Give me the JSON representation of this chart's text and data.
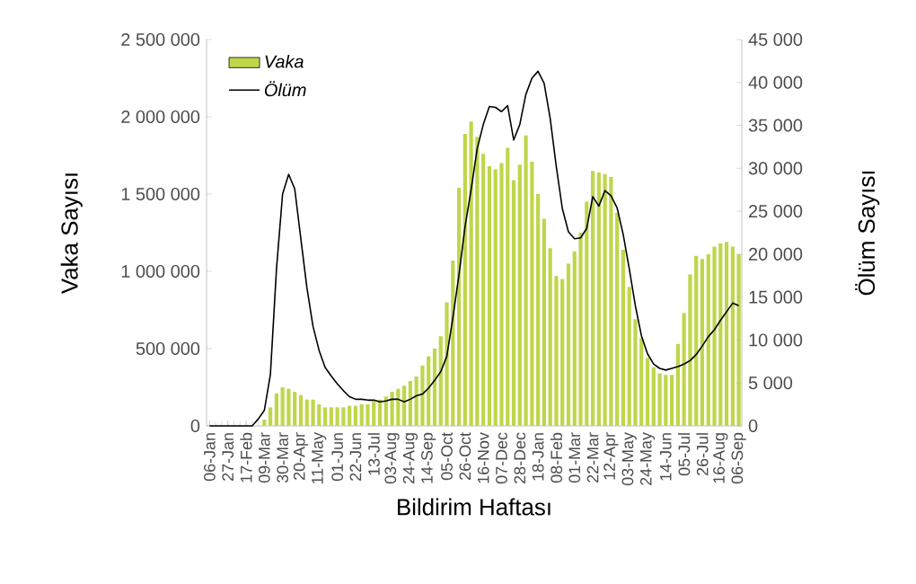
{
  "chart_data": {
    "type": "bar",
    "xlabel": "Bildirim Haftası",
    "ylabel": "Vaka Sayısı",
    "y2label": "Ölüm Sayısı",
    "legend": "top left",
    "categories": [
      "06-Jan",
      null,
      null,
      "27-Jan",
      null,
      null,
      "17-Feb",
      null,
      null,
      "09-Mar",
      null,
      null,
      "30-Mar",
      null,
      null,
      "20-Apr",
      null,
      null,
      "11-May",
      null,
      null,
      "01-Jun",
      null,
      null,
      "22-Jun",
      null,
      null,
      "13-Jul",
      null,
      null,
      "03-Aug",
      null,
      null,
      "24-Aug",
      null,
      null,
      "14-Sep",
      null,
      null,
      "05-Oct",
      null,
      null,
      "26-Oct",
      null,
      null,
      "16-Nov",
      null,
      null,
      "07-Dec",
      null,
      null,
      "28-Dec",
      null,
      null,
      "18-Jan",
      null,
      null,
      "08-Feb",
      null,
      null,
      "01-Mar",
      null,
      null,
      "22-Mar",
      null,
      null,
      "12-Apr",
      null,
      null,
      "03-May",
      null,
      null,
      "24-May",
      null,
      null,
      "14-Jun",
      null,
      null,
      "05-Jul",
      null,
      null,
      "26-Jul",
      null,
      null,
      "16-Aug",
      null,
      null,
      "06-Sep"
    ],
    "series": [
      {
        "name": "Vaka",
        "color": "#bfd64b",
        "values": [
          0,
          0,
          0,
          0,
          0,
          0,
          0,
          0,
          0,
          40000,
          120000,
          210000,
          250000,
          240000,
          220000,
          200000,
          170000,
          170000,
          140000,
          120000,
          120000,
          120000,
          120000,
          130000,
          130000,
          140000,
          140000,
          160000,
          170000,
          190000,
          220000,
          240000,
          260000,
          290000,
          320000,
          390000,
          450000,
          500000,
          580000,
          800000,
          1070000,
          1540000,
          1890000,
          1970000,
          1870000,
          1760000,
          1680000,
          1660000,
          1700000,
          1800000,
          1590000,
          1690000,
          1880000,
          1710000,
          1500000,
          1340000,
          1150000,
          970000,
          950000,
          1050000,
          1130000,
          1250000,
          1450000,
          1650000,
          1640000,
          1630000,
          1610000,
          1380000,
          1140000,
          900000,
          690000,
          570000,
          440000,
          380000,
          340000,
          330000,
          330000,
          530000,
          730000,
          980000,
          1100000,
          1080000,
          1110000,
          1160000,
          1180000,
          1190000,
          1160000,
          1110000
        ]
      },
      {
        "name": "Ölüm",
        "type": "line",
        "axis": "y2",
        "color": "#000000",
        "values": [
          0,
          0,
          0,
          0,
          0,
          0,
          0,
          0,
          800,
          1800,
          6000,
          18300,
          27000,
          29300,
          27600,
          21800,
          16100,
          11600,
          8800,
          6800,
          5800,
          4900,
          4100,
          3400,
          3100,
          3100,
          3000,
          3000,
          2800,
          2900,
          3100,
          3100,
          2800,
          3100,
          3500,
          3700,
          4400,
          5300,
          6300,
          8100,
          12600,
          17600,
          23200,
          27500,
          32300,
          35100,
          37200,
          37100,
          36600,
          37300,
          33300,
          35100,
          38600,
          40500,
          41300,
          39900,
          35800,
          30200,
          25300,
          22600,
          21800,
          21900,
          23000,
          26700,
          25600,
          27400,
          26800,
          25400,
          22300,
          18300,
          14000,
          10500,
          8400,
          7200,
          6700,
          6500,
          6700,
          6900,
          7200,
          7600,
          8300,
          9300,
          10400,
          11200,
          12300,
          13300,
          14300,
          14000
        ]
      }
    ],
    "ylim": [
      0,
      2500000
    ],
    "yticks": [
      {
        "value": 0,
        "label": "0"
      },
      {
        "value": 500000,
        "label": "500 000"
      },
      {
        "value": 1000000,
        "label": "1 000 000"
      },
      {
        "value": 1500000,
        "label": "1 500 000"
      },
      {
        "value": 2000000,
        "label": "2 000 000"
      },
      {
        "value": 2500000,
        "label": "2 500 000"
      }
    ],
    "y2lim": [
      0,
      45000
    ],
    "y2ticks": [
      {
        "value": 0,
        "label": "0"
      },
      {
        "value": 5000,
        "label": "5 000"
      },
      {
        "value": 10000,
        "label": "10 000"
      },
      {
        "value": 15000,
        "label": "15 000"
      },
      {
        "value": 20000,
        "label": "20 000"
      },
      {
        "value": 25000,
        "label": "25 000"
      },
      {
        "value": 30000,
        "label": "30 000"
      },
      {
        "value": 35000,
        "label": "35 000"
      },
      {
        "value": 40000,
        "label": "40 000"
      },
      {
        "value": 45000,
        "label": "45 000"
      }
    ]
  }
}
